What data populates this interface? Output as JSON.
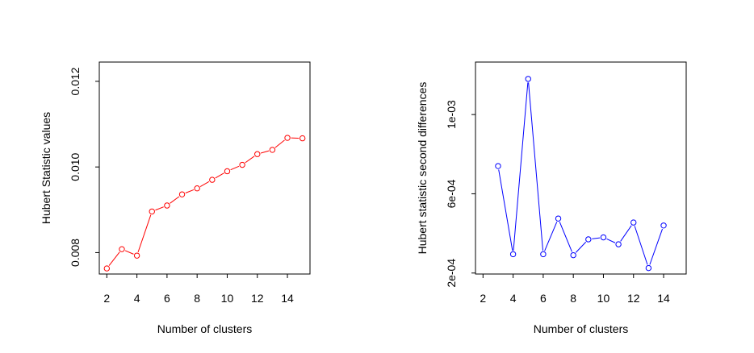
{
  "chart_data": [
    {
      "type": "line",
      "title": "",
      "xlabel": "Number of clusters",
      "ylabel": "Hubert Statistic values",
      "x": [
        2,
        3,
        4,
        5,
        6,
        7,
        8,
        9,
        10,
        11,
        12,
        13,
        14,
        15
      ],
      "y": [
        0.00763,
        0.00808,
        0.00793,
        0.00896,
        0.0091,
        0.00936,
        0.0095,
        0.0097,
        0.0099,
        0.01005,
        0.0103,
        0.0104,
        0.01068,
        0.01067
      ],
      "xlim": [
        1.5,
        15.5
      ],
      "ylim": [
        0.0075,
        0.01245
      ],
      "xticks": [
        2,
        4,
        6,
        8,
        10,
        12,
        14
      ],
      "xtick_labels": [
        "2",
        "4",
        "6",
        "8",
        "10",
        "12",
        "14"
      ],
      "yticks": [
        0.008,
        0.01,
        0.012
      ],
      "ytick_labels": [
        "0.008",
        "0.010",
        "0.012"
      ],
      "color": "#ff0000",
      "marker": "open-circle",
      "grid": false
    },
    {
      "type": "line",
      "title": "",
      "xlabel": "Number of clusters",
      "ylabel": "Hubert statistic second differences",
      "x": [
        3,
        4,
        5,
        6,
        7,
        8,
        9,
        10,
        11,
        12,
        13,
        14
      ],
      "y": [
        0.00074,
        0.000295,
        0.00118,
        0.000295,
        0.000475,
        0.00029,
        0.00037,
        0.00038,
        0.000345,
        0.000455,
        0.000225,
        0.00044
      ],
      "xlim": [
        1.5,
        15.5
      ],
      "ylim": [
        0.000195,
        0.001265
      ],
      "xticks": [
        2,
        4,
        6,
        8,
        10,
        12,
        14
      ],
      "xtick_labels": [
        "2",
        "4",
        "6",
        "8",
        "10",
        "12",
        "14"
      ],
      "yticks": [
        0.0002,
        0.0006,
        0.001
      ],
      "ytick_labels": [
        "2e-04",
        "6e-04",
        "1e-03"
      ],
      "color": "#0000ff",
      "marker": "open-circle",
      "grid": false
    }
  ]
}
